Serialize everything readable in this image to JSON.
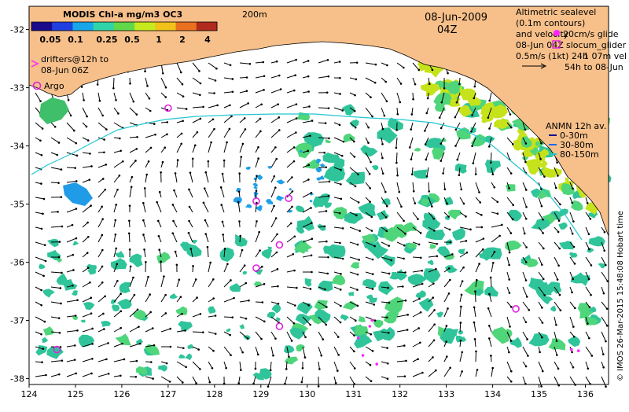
{
  "colorbar": {
    "title": "MODIS Chl-a mg/m3 OC3",
    "ticks": [
      "0.05",
      "0.1",
      "0.25",
      "0.5",
      "1",
      "2",
      "4"
    ],
    "colors": [
      "#1a0a8c",
      "#1f3fe0",
      "#18a6e8",
      "#2fd5a8",
      "#5fd84a",
      "#c6ea1e",
      "#f0c21a",
      "#e9701e",
      "#b02a1e"
    ]
  },
  "isobath_label": "200m",
  "date_label": "08-Jun-2009",
  "time_label": "04Z",
  "drifters_legend": {
    "line1": "drifters@12h to",
    "line2": "08-Jun 06Z"
  },
  "argo_legend": "Argo",
  "altimetric_legend": {
    "line1": "Altimetric sealevel",
    "line2": "(0.1m contours)",
    "line3": "and velocity",
    "line4": "08-Jun 04Z",
    "line5": "0.5m/s (1kt) 24h",
    "overlay_a": "20cm/s glide",
    "overlay_b": "slocum_glider",
    "overlay_c": "1 07m vel",
    "overlay_d": "54h to 08-Jun"
  },
  "anmn_legend": {
    "title": "ANMN 12h av.",
    "items": [
      {
        "label": "0-30m",
        "color": "#0a0a8c"
      },
      {
        "label": "30-80m",
        "color": "#1a66ff"
      },
      {
        "label": "80-150m",
        "color": "#22c7c7"
      }
    ]
  },
  "credit": "© IMOS 26-Mar-2015 15:48:08 Hobart time",
  "axes": {
    "x_ticks": [
      "124",
      "125",
      "126",
      "127",
      "128",
      "129",
      "130",
      "131",
      "132",
      "133",
      "134",
      "135",
      "136"
    ],
    "y_ticks": [
      "-32",
      "-33",
      "-34",
      "-35",
      "-36",
      "-37",
      "-38"
    ]
  },
  "colors": {
    "land": "#f7c08a",
    "ocean": "#ffffff",
    "arrow": "#000000",
    "drifter": "#ff22ff",
    "argo": "#e020e0",
    "glider": "#22cccc",
    "chl_mid": "#2fc49a",
    "chl_light": "#4fd57a",
    "chl_high": "#c6e21a",
    "chl_low": "#1fa0e8"
  }
}
